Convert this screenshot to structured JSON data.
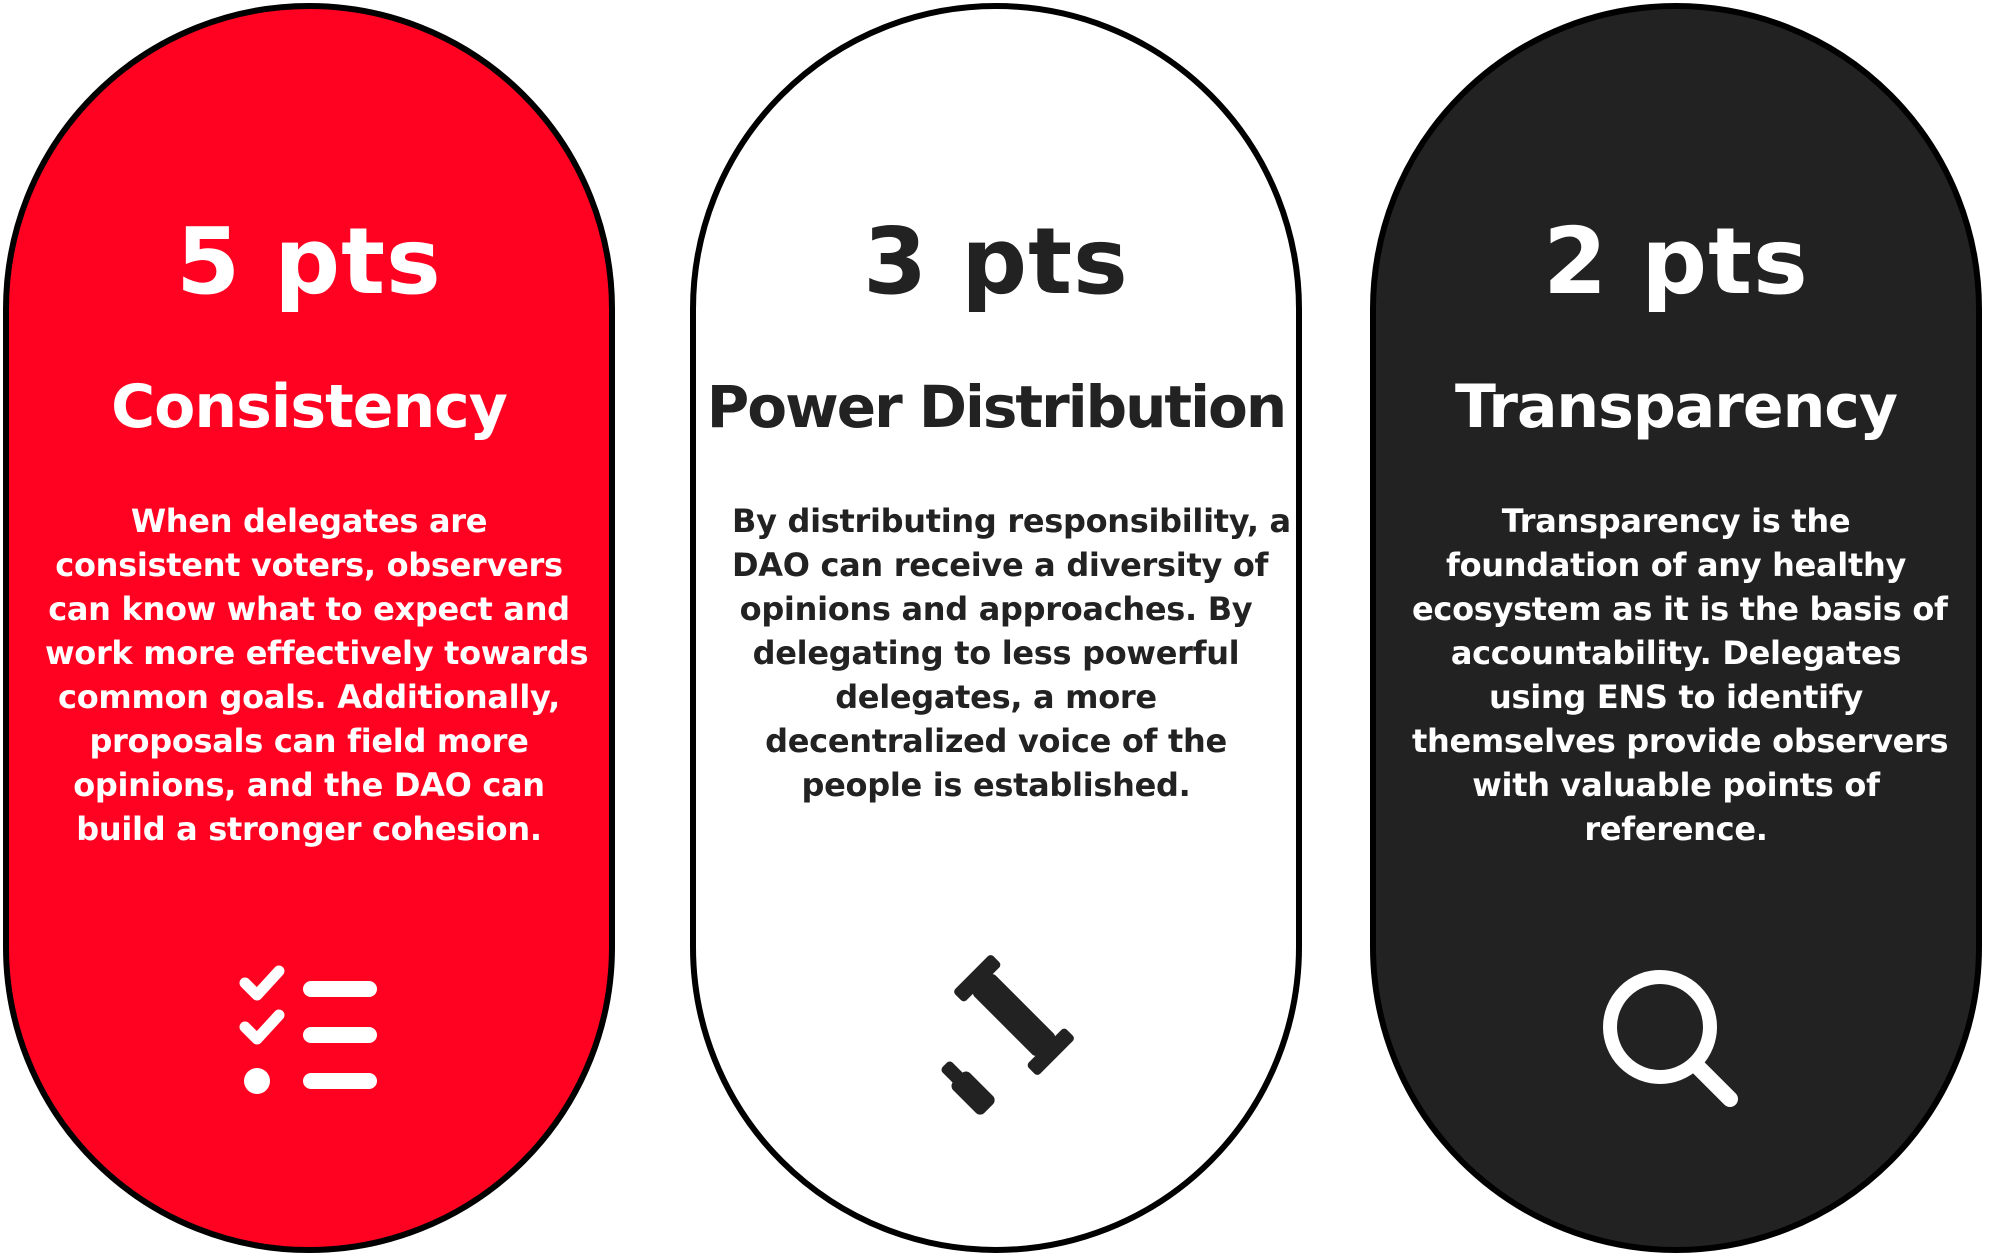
{
  "colors": {
    "red": "#ff0221",
    "white": "#ffffff",
    "dark": "#222222",
    "border": "#000000"
  },
  "cards": [
    {
      "points": "5 pts",
      "title": "Consistency",
      "description_lines": [
        "When delegates are",
        "consistent voters, observers",
        "can know what to expect and",
        "work more effectively towards",
        "common goals. Additionally,",
        "proposals can field more",
        "opinions, and the DAO can",
        "build a stronger cohesion."
      ],
      "icon": "checklist-icon",
      "background": "#ff0221",
      "text_color": "#ffffff"
    },
    {
      "points": "3 pts",
      "title": "Power Distribution",
      "description_lines": [
        "By distributing responsibility, a",
        "DAO can receive a diversity of",
        "opinions and approaches. By",
        "delegating to less powerful",
        "delegates, a more",
        "decentralized voice of the",
        "people is established."
      ],
      "icon": "gavel-icon",
      "background": "#ffffff",
      "text_color": "#222222"
    },
    {
      "points": "2 pts",
      "title": "Transparency",
      "description_lines": [
        "Transparency is the",
        "foundation of any healthy",
        "ecosystem as it is the basis of",
        "accountability. Delegates",
        "using ENS to identify",
        "themselves provide observers",
        "with valuable points of",
        "reference."
      ],
      "icon": "magnifier-icon",
      "background": "#222222",
      "text_color": "#ffffff"
    }
  ]
}
